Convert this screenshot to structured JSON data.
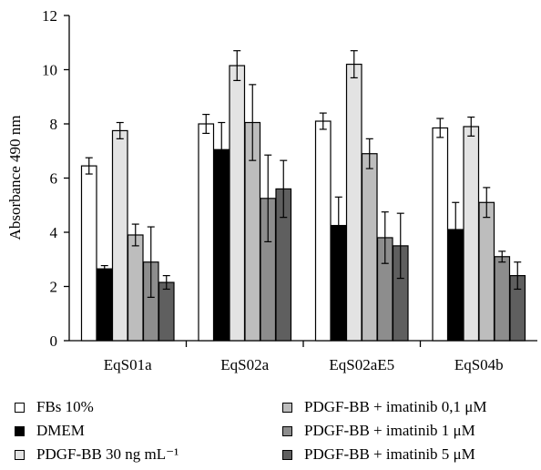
{
  "chart_data": {
    "type": "bar",
    "ylabel": "Absorbance 490 nm",
    "xlabel": "",
    "ylim": [
      0,
      12
    ],
    "yticks": [
      0,
      2,
      4,
      6,
      8,
      10,
      12
    ],
    "categories": [
      "EqS01a",
      "EqS02a",
      "EqS02aE5",
      "EqS04b"
    ],
    "series": [
      {
        "name": "FBs 10%",
        "color": "#ffffff",
        "values": [
          6.45,
          8.0,
          8.1,
          7.85
        ],
        "errors": [
          0.3,
          0.35,
          0.3,
          0.35
        ]
      },
      {
        "name": "DMEM",
        "color": "#000000",
        "values": [
          2.65,
          7.05,
          4.25,
          4.1
        ],
        "errors": [
          0.12,
          1.0,
          1.05,
          1.0
        ]
      },
      {
        "name": "PDGF-BB 30 ng mL⁻¹",
        "color": "#e3e3e3",
        "values": [
          7.75,
          10.15,
          10.2,
          7.9
        ],
        "errors": [
          0.3,
          0.55,
          0.5,
          0.35
        ]
      },
      {
        "name": "PDGF-BB + imatinib 0,1 μM",
        "color": "#bdbdbd",
        "values": [
          3.9,
          8.05,
          6.9,
          5.1
        ],
        "errors": [
          0.4,
          1.4,
          0.55,
          0.55
        ]
      },
      {
        "name": "PDGF-BB + imatinib 1 μM",
        "color": "#8d8d8d",
        "values": [
          2.9,
          5.25,
          3.8,
          3.1
        ],
        "errors": [
          1.3,
          1.6,
          0.95,
          0.2
        ]
      },
      {
        "name": "PDGF-BB + imatinib 5 μM",
        "color": "#5f5f5f",
        "values": [
          2.15,
          5.6,
          3.5,
          2.4
        ],
        "errors": [
          0.25,
          1.05,
          1.2,
          0.5
        ]
      }
    ],
    "legend_position": "bottom",
    "grid": false
  }
}
